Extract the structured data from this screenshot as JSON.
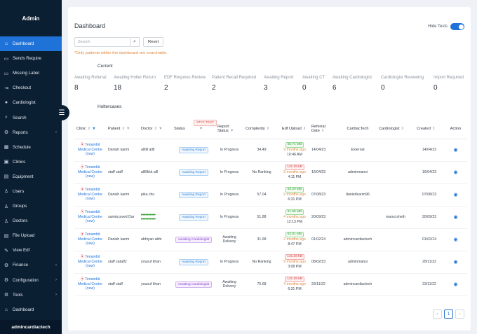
{
  "sidebar": {
    "title": "Admin",
    "items": [
      {
        "label": "Dashboard",
        "icon": "home-icon",
        "glyph": "⌂",
        "active": true,
        "caret": false
      },
      {
        "label": "Sends Require",
        "icon": "send-icon",
        "glyph": "▭",
        "active": false,
        "caret": false
      },
      {
        "label": "Missing Label",
        "icon": "label-icon",
        "glyph": "▭",
        "active": false,
        "caret": false
      },
      {
        "label": "Checkout",
        "icon": "logout-icon",
        "glyph": "⇥",
        "active": false,
        "caret": false
      },
      {
        "label": "Cardiologist",
        "icon": "user-icon",
        "glyph": "●",
        "active": false,
        "caret": false
      },
      {
        "label": "Search",
        "icon": "search-icon",
        "glyph": "⌕",
        "active": false,
        "caret": false
      },
      {
        "label": "Reports",
        "icon": "gear-icon",
        "glyph": "⚙",
        "active": false,
        "caret": true
      },
      {
        "label": "Schedule",
        "icon": "calendar-icon",
        "glyph": "▦",
        "active": false,
        "caret": false
      },
      {
        "label": "Clinics",
        "icon": "clinic-icon",
        "glyph": "▣",
        "active": false,
        "caret": false
      },
      {
        "label": "Equipment",
        "icon": "equipment-icon",
        "glyph": "▤",
        "active": false,
        "caret": false
      },
      {
        "label": "Users",
        "icon": "users-icon",
        "glyph": "♙",
        "active": false,
        "caret": false
      },
      {
        "label": "Groups",
        "icon": "groups-icon",
        "glyph": "♙",
        "active": false,
        "caret": false
      },
      {
        "label": "Doctors",
        "icon": "doctor-icon",
        "glyph": "♙",
        "active": false,
        "caret": false
      },
      {
        "label": "File Upload",
        "icon": "file-icon",
        "glyph": "▤",
        "active": false,
        "caret": false
      },
      {
        "label": "View Edf",
        "icon": "edit-icon",
        "glyph": "✎",
        "active": false,
        "caret": false
      },
      {
        "label": "Finance",
        "icon": "finance-icon",
        "glyph": "⚙",
        "active": false,
        "caret": true
      },
      {
        "label": "Configuration",
        "icon": "config-icon",
        "glyph": "⚙",
        "active": false,
        "caret": true
      },
      {
        "label": "Tools",
        "icon": "tools-icon",
        "glyph": "⚙",
        "active": false,
        "caret": true
      },
      {
        "label": "Dashboard",
        "icon": "home-icon",
        "glyph": "⌂",
        "active": false,
        "caret": false
      }
    ],
    "footer": "admincardiactech",
    "toggle_glyph": "☰"
  },
  "header": {
    "title": "Dashboard",
    "hide_tests_label": "Hide Tests",
    "hide_tests_on": true
  },
  "search": {
    "placeholder": "Search",
    "button_glyph": "⌕",
    "reset_label": "Reset",
    "note": "*Only patients within the dashboard are searchable."
  },
  "current": {
    "label": "Current",
    "stats": [
      {
        "label": "Awaiting Referral",
        "value": "8"
      },
      {
        "label": "Awaiting Holter Return",
        "value": "18"
      },
      {
        "label": "EDF Requires Review",
        "value": "2"
      },
      {
        "label": "Patient Recall Required",
        "value": "2"
      },
      {
        "label": "Awaiting Report",
        "value": "3"
      },
      {
        "label": "Awaiting CT",
        "value": "0"
      },
      {
        "label": "Awaiting Cardiologist",
        "value": "6"
      },
      {
        "label": "Cardiologist Reviewing",
        "value": "0"
      },
      {
        "label": "Import Required",
        "value": "0"
      }
    ]
  },
  "holtercases": {
    "label": "Holtercases",
    "columns": {
      "clinic": "Clinic",
      "patient": "Patient",
      "doctor": "Doctor",
      "status": "Status",
      "report_status": "Report Status",
      "complexity": "Complexity",
      "edf_upload": "Edf Upload",
      "referral_date": "Referral Date",
      "cardiactech": "CardiacTech",
      "cardiologist": "Cardiologist",
      "created": "Created",
      "action": "Action"
    },
    "rows": [
      {
        "clinic": "Tenambit Medical Centre (nsw)",
        "patient": "Danish karim",
        "doctor": "alltlll alltl",
        "doctor_strike": false,
        "status": [
          {
            "text": "Awaiting Report",
            "kind": "report"
          }
        ],
        "report_status": "In Progress",
        "complexity": "34.49",
        "edf_size": "65.71 MB",
        "edf_color": "green",
        "edf_ago": "9 months ago",
        "edf_time": "10:46 AM",
        "referral": "14/04/23",
        "cardiactech": "External",
        "cardiologist": "",
        "created": "14/04/23"
      },
      {
        "clinic": "Tenambit Medical Centre (nsw)",
        "patient": "staff staff",
        "doctor": "alllllkkk alll",
        "doctor_strike": false,
        "status": [
          {
            "text": "Awaiting Report",
            "kind": "report"
          },
          {
            "text": "STAT TEST",
            "kind": "stat"
          }
        ],
        "report_status": "In Progress",
        "complexity": "No Ranking",
        "edf_size": "141.28 kB",
        "edf_color": "red",
        "edf_ago": "9 months ago",
        "edf_time": "4:11 PM",
        "referral": "16/04/23",
        "cardiactech": "adminmansi",
        "cardiologist": "",
        "created": "16/04/23"
      },
      {
        "clinic": "Tenambit Medical Centre (nsw)",
        "patient": "Danish karim",
        "doctor": "pika chu",
        "doctor_strike": false,
        "status": [
          {
            "text": "Awaiting Report",
            "kind": "report"
          }
        ],
        "report_status": "In Progress",
        "complexity": "57.04",
        "edf_size": "62.29 MB",
        "edf_color": "green",
        "edf_ago": "9 months ago",
        "edf_time": "6:31 PM",
        "referral": "07/08/23",
        "cardiactech": "danishkarim96",
        "cardiologist": "",
        "created": "07/08/23"
      },
      {
        "clinic": "Tenambit Medical Centre (nsw)",
        "patient": "samia javed Dar",
        "doctor": "xxxxxxxx xxxxxxxx",
        "doctor_strike": true,
        "status": [
          {
            "text": "Awaiting Report",
            "kind": "report"
          }
        ],
        "report_status": "In Progress",
        "complexity": "51.88",
        "edf_size": "61.99 MB",
        "edf_color": "green",
        "edf_ago": "4 months ago",
        "edf_time": "12:13 PM",
        "referral": "20/09/23",
        "cardiactech": "",
        "cardiologist": "mansi.sheth",
        "created": "20/09/23"
      },
      {
        "clinic": "Tenambit Medical Centre (nsw)",
        "patient": "Danish karim",
        "doctor": "abhiyan abhi",
        "doctor_strike": false,
        "status": [
          {
            "text": "Awaiting Cardiologist",
            "kind": "cardio"
          }
        ],
        "report_status": "Awaiting Delivery",
        "complexity": "31.68",
        "edf_size": "62.81 MB",
        "edf_color": "green",
        "edf_ago": "2 months ago",
        "edf_time": "8:47 PM",
        "referral": "01/02/24",
        "cardiactech": "admincardiactech",
        "cardiologist": "",
        "created": "01/02/24"
      },
      {
        "clinic": "Tenambit Medical Centre (nsw)",
        "patient": "staff satatf2",
        "doctor": "yousuf khan",
        "doctor_strike": false,
        "status": [
          {
            "text": "Awaiting Report",
            "kind": "report"
          },
          {
            "text": "STAT TEST",
            "kind": "stat"
          }
        ],
        "report_status": "In Progress",
        "complexity": "No Ranking",
        "edf_size": "141.28 kB",
        "edf_color": "red",
        "edf_ago": "9 months ago",
        "edf_time": "3:08 PM",
        "referral": "08/02/23",
        "cardiactech": "adminmansi",
        "cardiologist": "",
        "created": "28/11/22"
      },
      {
        "clinic": "Tenambit Medical Centre (nsw)",
        "patient": "staff staff",
        "doctor": "yousuf khan",
        "doctor_strike": false,
        "status": [
          {
            "text": "Awaiting Cardiologist",
            "kind": "cardio"
          },
          {
            "text": "STAT TEST",
            "kind": "stat"
          }
        ],
        "report_status": "Awaiting Delivery",
        "complexity": "75.68",
        "edf_size": "141.28 kB",
        "edf_color": "red",
        "edf_ago": "4 months ago",
        "edf_time": "6:31 PM",
        "referral": "23/11/22",
        "cardiactech": "admincardiactech",
        "cardiologist": "",
        "created": "23/11/22"
      }
    ],
    "action_glyph": "◉",
    "warn_glyph": "⦿"
  },
  "pagination": {
    "prev": "‹",
    "current": "1",
    "next": "›"
  }
}
